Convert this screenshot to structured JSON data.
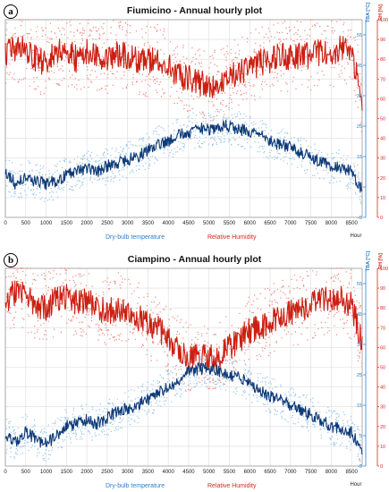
{
  "figure": {
    "panels": [
      {
        "letter": "a",
        "title": "Fiumicino - Annual hourly plot",
        "legend": [
          "Dry-bulb temperature",
          "Relative Humidity"
        ]
      },
      {
        "letter": "b",
        "title": "Ciampino - Annual hourly plot",
        "legend": [
          "Dry-bulb temperature",
          "Relative Humidity"
        ]
      }
    ]
  },
  "colors": {
    "temperature_line": "#0d3a78",
    "temperature_points": "#9cc6ea",
    "humidity_line": "#cc1f12",
    "humidity_points": "#ef8a82",
    "temp_axis": "#2f7fc8",
    "rh_axis": "#d42b1e",
    "grid": "#dcdcdc"
  },
  "chart_data": [
    {
      "type": "line",
      "title": "Fiumicino - Annual hourly plot",
      "xlabel": "Hour",
      "x_ticks": [
        0,
        500,
        1000,
        1500,
        2000,
        2500,
        3000,
        3500,
        4000,
        4500,
        5000,
        5500,
        6000,
        6500,
        7000,
        7500,
        8000,
        8500
      ],
      "xlim": [
        0,
        8760
      ],
      "y_left": {
        "label": "TBA [°C]",
        "ylim": [
          -5,
          60
        ],
        "ticks": [
          -5,
          5,
          15,
          25,
          35,
          45,
          55
        ]
      },
      "y_right": {
        "label": "RH [%]",
        "ylim": [
          0,
          100
        ],
        "ticks": [
          0,
          10,
          20,
          30,
          40,
          50,
          60,
          70,
          80,
          90,
          100
        ]
      },
      "series": [
        {
          "name": "Dry-bulb temperature",
          "axis": "left",
          "x": [
            0,
            250,
            500,
            750,
            1000,
            1250,
            1500,
            1750,
            2000,
            2250,
            2500,
            2750,
            3000,
            3250,
            3500,
            3750,
            4000,
            4250,
            4500,
            4750,
            5000,
            5250,
            5500,
            5750,
            6000,
            6250,
            6500,
            6750,
            7000,
            7250,
            7500,
            7750,
            8000,
            8250,
            8500,
            8760
          ],
          "y": [
            10,
            6,
            8,
            7,
            6,
            7,
            9,
            10,
            11,
            10,
            12,
            13,
            14,
            15,
            17,
            19,
            20,
            22,
            23,
            24,
            24,
            25,
            25,
            24,
            23,
            22,
            20,
            19,
            18,
            16,
            15,
            13,
            12,
            11,
            10,
            4
          ]
        },
        {
          "name": "Relative Humidity",
          "axis": "right",
          "x": [
            0,
            250,
            500,
            750,
            1000,
            1250,
            1500,
            1750,
            2000,
            2250,
            2500,
            2750,
            3000,
            3250,
            3500,
            3750,
            4000,
            4250,
            4500,
            4750,
            5000,
            5250,
            5500,
            5750,
            6000,
            6250,
            6500,
            6750,
            7000,
            7250,
            7500,
            7750,
            8000,
            8250,
            8500,
            8760
          ],
          "y": [
            82,
            86,
            84,
            80,
            78,
            83,
            85,
            80,
            84,
            82,
            80,
            83,
            82,
            80,
            79,
            80,
            76,
            72,
            70,
            68,
            66,
            68,
            70,
            74,
            76,
            78,
            80,
            82,
            80,
            83,
            82,
            84,
            83,
            85,
            82,
            60
          ]
        }
      ]
    },
    {
      "type": "line",
      "title": "Ciampino - Annual hourly plot",
      "xlabel": "Hour",
      "x_ticks": [
        0,
        500,
        1000,
        1500,
        2000,
        2500,
        3000,
        3500,
        4000,
        4500,
        5000,
        5500,
        6000,
        6500,
        7000,
        7500,
        8000,
        8500
      ],
      "xlim": [
        0,
        8760
      ],
      "y_left": {
        "label": "TBA [°C]",
        "ylim": [
          -5,
          60
        ],
        "ticks": [
          -5,
          5,
          15,
          25,
          35,
          45,
          55
        ]
      },
      "y_right": {
        "label": "RH [%]",
        "ylim": [
          0,
          100
        ],
        "ticks": [
          0,
          10,
          20,
          30,
          40,
          50,
          60,
          70,
          80,
          90,
          100
        ]
      },
      "series": [
        {
          "name": "Dry-bulb temperature",
          "axis": "left",
          "x": [
            0,
            250,
            500,
            750,
            1000,
            1250,
            1500,
            1750,
            2000,
            2250,
            2500,
            2750,
            3000,
            3250,
            3500,
            3750,
            4000,
            4250,
            4500,
            4750,
            5000,
            5250,
            5500,
            5750,
            6000,
            6250,
            6500,
            6750,
            7000,
            7250,
            7500,
            7750,
            8000,
            8250,
            8500,
            8760
          ],
          "y": [
            5,
            3,
            6,
            4,
            2,
            5,
            8,
            9,
            10,
            9,
            11,
            13,
            14,
            15,
            17,
            19,
            21,
            23,
            26,
            27,
            27,
            26,
            25,
            24,
            22,
            20,
            18,
            17,
            15,
            13,
            12,
            10,
            8,
            7,
            6,
            0
          ]
        },
        {
          "name": "Relative Humidity",
          "axis": "right",
          "x": [
            0,
            250,
            500,
            750,
            1000,
            1250,
            1500,
            1750,
            2000,
            2250,
            2500,
            2750,
            3000,
            3250,
            3500,
            3750,
            4000,
            4250,
            4500,
            4750,
            5000,
            5250,
            5500,
            5750,
            6000,
            6250,
            6500,
            6750,
            7000,
            7250,
            7500,
            7750,
            8000,
            8250,
            8500,
            8760
          ],
          "y": [
            84,
            88,
            86,
            82,
            80,
            84,
            86,
            82,
            84,
            80,
            78,
            80,
            78,
            75,
            72,
            70,
            64,
            60,
            56,
            55,
            54,
            56,
            60,
            64,
            68,
            70,
            74,
            76,
            78,
            80,
            82,
            84,
            83,
            85,
            82,
            62
          ]
        }
      ]
    }
  ]
}
